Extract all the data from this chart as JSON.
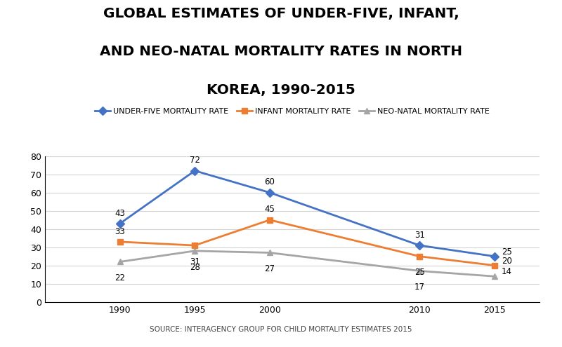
{
  "title_line1": "GLOBAL ESTIMATES OF UNDER-FIVE, INFANT,",
  "title_line2": "AND NEO-NATAL MORTALITY RATES IN NORTH",
  "title_line3": "KOREA, 1990-2015",
  "years": [
    1990,
    1995,
    2000,
    2010,
    2015
  ],
  "under_five": [
    43,
    72,
    60,
    31,
    25
  ],
  "infant": [
    33,
    31,
    45,
    25,
    20
  ],
  "neo_natal": [
    22,
    28,
    27,
    17,
    14
  ],
  "under_five_color": "#4472C4",
  "infant_color": "#ED7D31",
  "neo_natal_color": "#A5A5A5",
  "legend_labels": [
    "UNDER-FIVE MORTALITY RATE",
    "INFANT MORTALITY RATE",
    "NEO-NATAL MORTALITY RATE"
  ],
  "source_text": "SOURCE: INTERAGENCY GROUP FOR CHILD MORTALITY ESTIMATES 2015",
  "ylim": [
    0,
    80
  ],
  "yticks": [
    0,
    10,
    20,
    30,
    40,
    50,
    60,
    70,
    80
  ],
  "background_color": "#FFFFFF",
  "title_fontsize": 14.5,
  "label_fontsize": 8.5,
  "legend_fontsize": 8,
  "source_fontsize": 7.5,
  "tick_fontsize": 9
}
